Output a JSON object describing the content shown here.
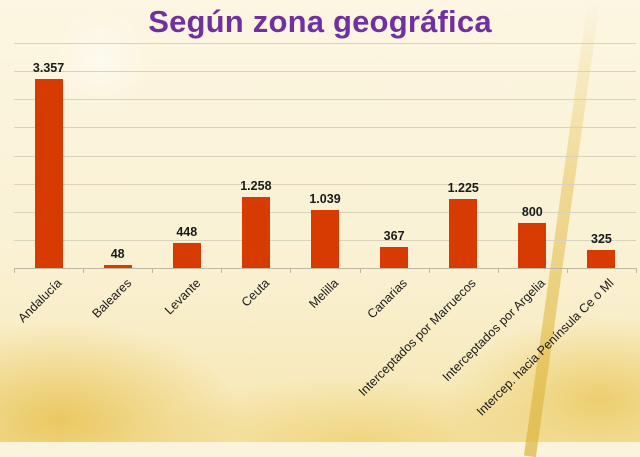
{
  "title": "Según zona geográfica",
  "colors": {
    "bar": "#d83b01",
    "title": "#7030a0",
    "grid": "#d9d3bd"
  },
  "chart_data": {
    "type": "bar",
    "title": "Según zona geográfica",
    "xlabel": "",
    "ylabel": "",
    "ylim": [
      0,
      4000
    ],
    "grid": true,
    "legend": "none",
    "categories": [
      "Andalucía",
      "Baleares",
      "Levante",
      "Ceuta",
      "Melilla",
      "Canarias",
      "Interceptados por Marruecos",
      "Interceptados por Argelia",
      "Intercep. hacia Península Ce o Ml"
    ],
    "values": [
      3357,
      48,
      448,
      1258,
      1039,
      367,
      1225,
      800,
      325
    ],
    "value_labels": [
      "3.357",
      "48",
      "448",
      "1.258",
      "1.039",
      "367",
      "1.225",
      "800",
      "325"
    ]
  }
}
